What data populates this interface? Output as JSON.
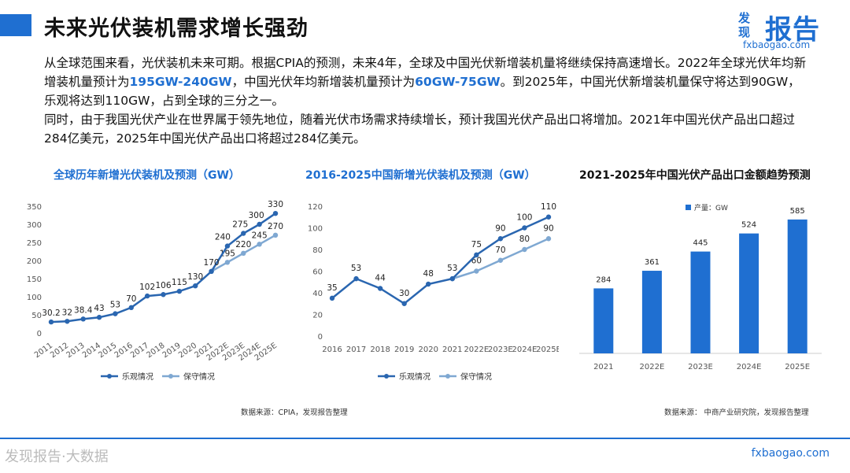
{
  "header": {
    "title": "未来光伏装机需求增长强劲",
    "logo_small_1": "发",
    "logo_small_2": "现",
    "logo_big": "报告",
    "logo_url": "fxbaogao.com"
  },
  "body": {
    "p1_a": "从全球范围来看，光伏装机未来可期。根据CPIA的预测，未来4年，全球及中国光伏新增装机量将继续保持高速增长。2022年全球光伏年均新增装机量预计为",
    "p1_hl1": "195GW-240GW",
    "p1_b": "，中国光伏年均新增装机量预计为",
    "p1_hl2": "60GW-75GW",
    "p1_c": "。到2025年，中国光伏新增装机量保守将达到90GW，乐观将达到110GW，占到全球的三分之一。",
    "p2": "同时，由于我国光伏产业在世界属于领先地位，随着光伏市场需求持续增长，预计我国光伏产品出口将增加。2021年中国光伏产品出口超过284亿美元，2025年中国光伏产品出口将超过284亿美元。"
  },
  "colors": {
    "accent": "#1f6fd1",
    "optimistic": "#2a66b0",
    "conservative": "#7fa8d2",
    "bar": "#1f6fd1"
  },
  "chart_data": [
    {
      "id": "chart1",
      "type": "line",
      "title": "全球历年新增光伏装机及预测（GW）",
      "categories": [
        "2011",
        "2012",
        "2013",
        "2014",
        "2015",
        "2016",
        "2017",
        "2018",
        "2019",
        "2020",
        "2021",
        "2022E",
        "2023E",
        "2024E",
        "2025E"
      ],
      "yticks": [
        "0",
        "50",
        "100",
        "150",
        "200",
        "250",
        "300",
        "350"
      ],
      "ylim": [
        0,
        350
      ],
      "series": [
        {
          "name": "乐观情况",
          "values": [
            30.2,
            32,
            38.4,
            43,
            53,
            70,
            102,
            106,
            115,
            130,
            170,
            240,
            275,
            300,
            330
          ],
          "labels": [
            "30.2",
            "32",
            "38.4",
            "43",
            "53",
            "70",
            "102",
            "106",
            "115",
            "130",
            "170",
            "240",
            "275",
            "300",
            "330"
          ]
        },
        {
          "name": "保守情况",
          "values": [
            null,
            null,
            null,
            null,
            null,
            null,
            null,
            null,
            null,
            null,
            170,
            195,
            220,
            245,
            270
          ],
          "labels": [
            "",
            "",
            "",
            "",
            "",
            "",
            "",
            "",
            "",
            "",
            "",
            "195",
            "220",
            "245",
            "270"
          ]
        }
      ],
      "source": "数据来源：CPIA，发现报告整理"
    },
    {
      "id": "chart2",
      "type": "line",
      "title": "2016-2025中国新增光伏装机及预测（GW）",
      "categories": [
        "2016",
        "2017",
        "2018",
        "2019",
        "2020",
        "2021",
        "2022E",
        "2023E",
        "2024E",
        "2025E"
      ],
      "yticks": [
        "0",
        "20",
        "40",
        "60",
        "80",
        "100",
        "120"
      ],
      "ylim": [
        0,
        120
      ],
      "series": [
        {
          "name": "乐观情况",
          "values": [
            35,
            53,
            44,
            30,
            48,
            53,
            75,
            90,
            100,
            110
          ],
          "labels": [
            "35",
            "53",
            "44",
            "30",
            "48",
            "53",
            "75",
            "90",
            "100",
            "110"
          ]
        },
        {
          "name": "保守情况",
          "values": [
            null,
            null,
            null,
            null,
            null,
            53,
            60,
            70,
            80,
            90
          ],
          "labels": [
            "",
            "",
            "",
            "",
            "",
            "",
            "60",
            "70",
            "80",
            "90"
          ]
        }
      ]
    },
    {
      "id": "chart3",
      "type": "bar",
      "title": "2021-2025年中国光伏产品出口金额趋势预测",
      "legend": "产量：GW",
      "categories": [
        "2021",
        "2022E",
        "2023E",
        "2024E",
        "2025E"
      ],
      "values": [
        284,
        361,
        445,
        524,
        585
      ],
      "ylim": [
        0,
        650
      ],
      "source": "数据来源：        中商产业研究院，发现报告整理"
    }
  ],
  "footer": {
    "url": "fxbaogao.com",
    "watermark": "发现报告·大数据"
  }
}
